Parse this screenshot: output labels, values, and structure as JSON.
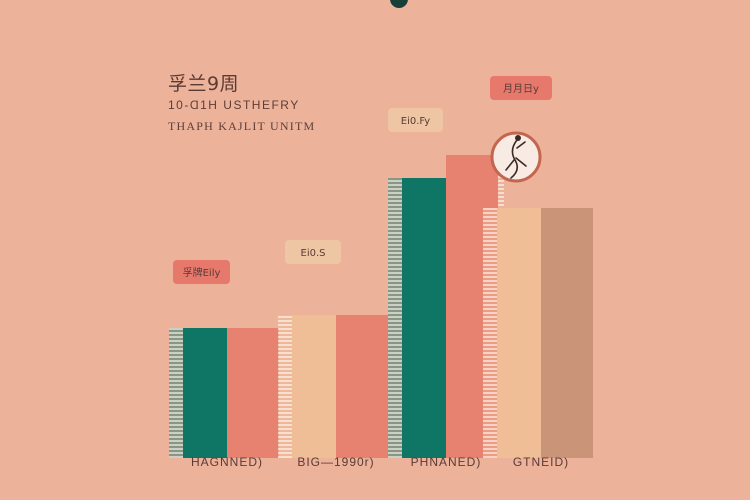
{
  "title": {
    "main": "孚兰9周",
    "line1": "10-Ɑ1H USTHEFRY",
    "line2": "THAPH KAJLIT UNITM"
  },
  "icons": {
    "badge": "dancer-figure-icon",
    "top": "dark-dot-icon"
  },
  "colors": {
    "background": "#edb29a",
    "teal": "#0f7565",
    "salmon": "#e6826f",
    "peach": "#efbe97",
    "tan": "#c99478",
    "label_dark": "#5a3b34"
  },
  "chart_data": {
    "type": "bar",
    "categories": [
      "HAGNNED)",
      "BIG—1990r)",
      "PHNANED)",
      "GTNEID)"
    ],
    "series": [
      {
        "values": [
          130,
          143,
          280,
          250
        ],
        "colors": [
          "#0f7565",
          "#efbe97",
          "#0f7565",
          "#efbe97"
        ]
      },
      {
        "values": [
          130,
          143,
          303,
          250
        ],
        "colors": [
          "#e6826f",
          "#e6826f",
          "#e6826f",
          "#c99478"
        ]
      }
    ],
    "data_labels": [
      "孚牌Eily",
      "Ei0.S",
      "Ei0.Fy",
      "月月日y"
    ],
    "label_colors": [
      "#e6786c",
      "#efc6a4",
      "#efc6a4",
      "#e6786c"
    ],
    "ylim": [
      0,
      330
    ],
    "grid": false,
    "legend": "none"
  }
}
